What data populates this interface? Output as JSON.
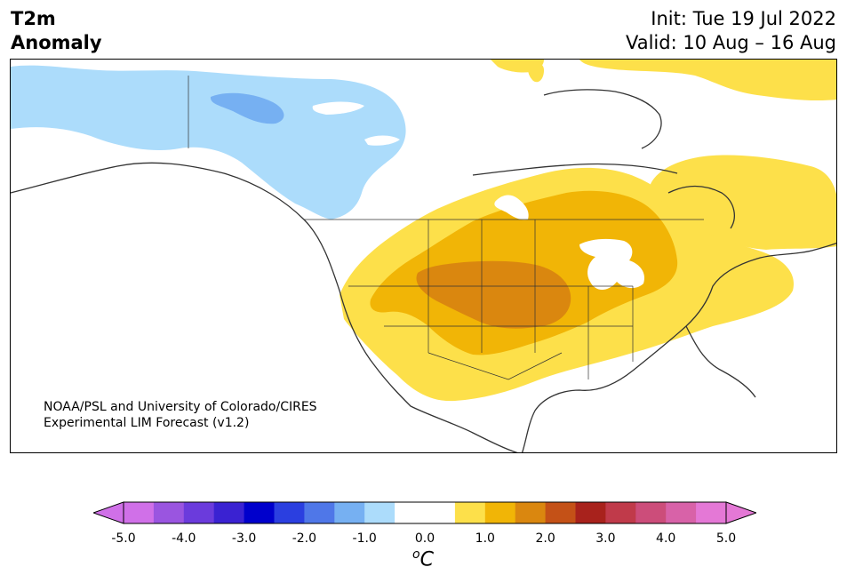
{
  "header": {
    "title_line1": "T2m",
    "title_line2": "Anomaly",
    "init_text": "Init: Tue 19 Jul 2022",
    "valid_text": "Valid: 10 Aug – 16 Aug"
  },
  "credit": {
    "line1": "NOAA/PSL and University of Colorado/CIRES",
    "line2": "Experimental LIM Forecast (v1.2)"
  },
  "colorbar": {
    "unit_base": "C",
    "unit_sup": "o",
    "ticks": [
      "-5.0",
      "-4.0",
      "-3.0",
      "-2.0",
      "-1.0",
      "0.0",
      "1.0",
      "2.0",
      "3.0",
      "4.0",
      "5.0"
    ],
    "colors": [
      "#d070e8",
      "#9a55e0",
      "#6b3bdc",
      "#3a22d2",
      "#0000cc",
      "#2b3fe0",
      "#4f77e8",
      "#76b0f2",
      "#acdcfb",
      "#ffffff",
      "#ffffff",
      "#fde04a",
      "#f1b506",
      "#da870f",
      "#c45117",
      "#a8221c",
      "#c03a4a",
      "#cc4d7a",
      "#d862a8",
      "#e478d6"
    ]
  },
  "anomaly_colors": {
    "cold_light": "#acdcfb",
    "cold_mid": "#76b0f2",
    "warm_light": "#fde04a",
    "warm_mid": "#f1b506",
    "warm_strong": "#da870f"
  }
}
